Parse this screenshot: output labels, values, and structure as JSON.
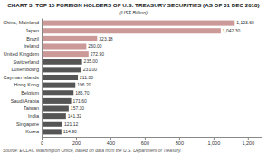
{
  "chart_data": {
    "type": "bar",
    "orientation": "horizontal",
    "title": "CHART 3: TOP 15 FOREIGN HOLDERS OF U.S. TREASURY SECURITIES (AS OF 31 DEC 2018)",
    "subtitle": "(US$ Billion)",
    "source": "Source: ECLAC Washington Office, based on data from the U.S. Department of Treasury.",
    "categories": [
      "Korea",
      "Singapore",
      "India",
      "Taiwan",
      "Saudi Arabia",
      "Belgium",
      "Hong Kong",
      "Cayman Islands",
      "Luxembourg",
      "Switzerland",
      "United Kingdom",
      "Ireland",
      "Brazil",
      "Japan",
      "China, Mainland"
    ],
    "values": [
      114.9,
      121.12,
      141.32,
      157.3,
      171.6,
      185.7,
      196.2,
      211.0,
      231.0,
      235.0,
      272.9,
      260.0,
      323.18,
      1042.3,
      1123.6
    ],
    "value_labels": [
      "114.90",
      "121.12",
      "141.32",
      "157.30",
      "171.60",
      "185.70",
      "196.20",
      "211.00",
      "231.00",
      "235.00",
      "272.90",
      "260.00",
      "323.18",
      "1,042.30",
      "1,123.60"
    ],
    "colors": [
      "#555555",
      "#555555",
      "#555555",
      "#555555",
      "#555555",
      "#555555",
      "#555555",
      "#555555",
      "#555555",
      "#555555",
      "#cc9999",
      "#cc9999",
      "#cc9999",
      "#cc9999",
      "#cc9999"
    ],
    "xlim": [
      0,
      1280
    ],
    "xticks": [
      0,
      200,
      400,
      600,
      800,
      {
        "value": 1000,
        "label": "1,000"
      },
      {
        "value": 1200,
        "label": "1,200"
      }
    ],
    "data_labels": true,
    "grid": false
  }
}
